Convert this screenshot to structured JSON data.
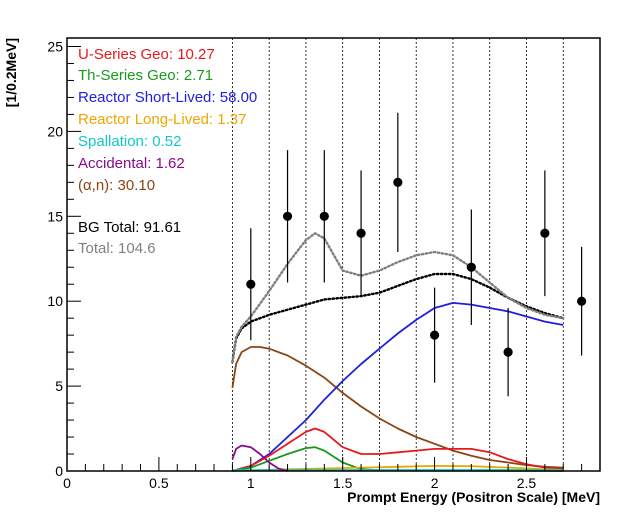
{
  "chart_data": {
    "type": "line",
    "title": "",
    "xlabel": "Prompt Energy (Positron Scale) [MeV]",
    "ylabel": "[1/0.2MeV]",
    "xlim": [
      0,
      2.9
    ],
    "ylim": [
      0,
      25.5
    ],
    "x_ticks": [
      0,
      0.5,
      1,
      1.5,
      2,
      2.5
    ],
    "x_tick_labels": [
      "0",
      "0.5",
      "1",
      "1.5",
      "2",
      "2.5"
    ],
    "y_ticks": [
      0,
      5,
      10,
      15,
      20,
      25
    ],
    "y_tick_labels": [
      "0",
      "5",
      "10",
      "15",
      "20",
      "25"
    ],
    "bin_edges_dotted": [
      0.9,
      1.1,
      1.3,
      1.5,
      1.7,
      1.9,
      2.1,
      2.3,
      2.5,
      2.7
    ],
    "legend_placement": "top-left",
    "legend": [
      {
        "label": "U-Series Geo: 10.27",
        "color": "#e41a1c"
      },
      {
        "label": "Th-Series Geo: 2.71",
        "color": "#1a9a1a"
      },
      {
        "label": "Reactor Short-Lived: 58.00",
        "color": "#1f1fe0"
      },
      {
        "label": "Reactor Long-Lived: 1.37",
        "color": "#f0a500"
      },
      {
        "label": "Spallation: 0.52",
        "color": "#10c8c8"
      },
      {
        "label": "Accidental: 1.62",
        "color": "#8b0a8b"
      },
      {
        "label": "(α,n): 30.10",
        "color": "#8b4513"
      },
      {
        "label": "BG Total: 91.61",
        "color": "#000000"
      },
      {
        "label": "Total: 104.6",
        "color": "#808080"
      }
    ],
    "data_points": {
      "name": "Data",
      "x": [
        1.0,
        1.2,
        1.4,
        1.6,
        1.8,
        2.0,
        2.2,
        2.4,
        2.6,
        2.8
      ],
      "y": [
        11,
        15,
        15,
        14,
        17,
        8,
        12,
        7,
        14,
        10
      ],
      "err_lo": [
        3.3,
        3.9,
        3.9,
        3.7,
        4.1,
        2.8,
        3.4,
        2.6,
        3.7,
        3.2
      ],
      "err_hi": [
        3.3,
        3.9,
        3.9,
        3.7,
        4.1,
        2.8,
        3.4,
        2.6,
        3.7,
        3.2
      ]
    },
    "series": [
      {
        "color": "#8b4513",
        "style": "solid",
        "x": [
          0.9,
          0.92,
          0.95,
          1.0,
          1.05,
          1.1,
          1.2,
          1.3,
          1.4,
          1.5,
          1.6,
          1.7,
          1.8,
          1.9,
          2.0,
          2.1,
          2.2,
          2.3,
          2.4,
          2.5,
          2.6,
          2.7
        ],
        "y": [
          4.9,
          6.3,
          7.0,
          7.3,
          7.3,
          7.2,
          6.8,
          6.2,
          5.5,
          4.6,
          3.8,
          3.1,
          2.5,
          2.0,
          1.6,
          1.2,
          0.9,
          0.65,
          0.5,
          0.35,
          0.25,
          0.2
        ]
      },
      {
        "color": "#1f1fe0",
        "style": "solid",
        "x": [
          0.9,
          1.0,
          1.1,
          1.2,
          1.3,
          1.4,
          1.5,
          1.6,
          1.7,
          1.8,
          1.9,
          2.0,
          2.1,
          2.2,
          2.3,
          2.4,
          2.5,
          2.6,
          2.7
        ],
        "y": [
          0.0,
          0.3,
          1.0,
          2.0,
          3.0,
          4.2,
          5.3,
          6.3,
          7.2,
          8.1,
          8.9,
          9.6,
          9.9,
          9.8,
          9.6,
          9.4,
          9.1,
          8.8,
          8.6
        ]
      },
      {
        "color": "#e41a1c",
        "style": "solid",
        "x": [
          0.9,
          1.0,
          1.1,
          1.2,
          1.3,
          1.35,
          1.4,
          1.5,
          1.6,
          1.7,
          1.8,
          1.9,
          2.0,
          2.1,
          2.2,
          2.3,
          2.4,
          2.5,
          2.6,
          2.7
        ],
        "y": [
          0.0,
          0.3,
          0.9,
          1.6,
          2.3,
          2.5,
          2.3,
          1.4,
          1.0,
          1.0,
          1.1,
          1.2,
          1.3,
          1.3,
          1.3,
          1.1,
          0.7,
          0.4,
          0.2,
          0.1
        ]
      },
      {
        "color": "#1a9a1a",
        "style": "solid",
        "x": [
          0.9,
          1.0,
          1.1,
          1.2,
          1.3,
          1.35,
          1.4,
          1.5,
          1.6,
          1.7,
          1.8,
          1.9,
          2.0,
          2.2,
          2.4,
          2.6,
          2.7
        ],
        "y": [
          0.0,
          0.2,
          0.6,
          1.0,
          1.35,
          1.4,
          1.2,
          0.5,
          0.1,
          0.05,
          0.03,
          0.02,
          0.02,
          0.02,
          0.01,
          0.01,
          0.0
        ]
      },
      {
        "color": "#f0a500",
        "style": "solid",
        "x": [
          0.9,
          1.0,
          1.2,
          1.4,
          1.6,
          1.8,
          2.0,
          2.2,
          2.4,
          2.6,
          2.7
        ],
        "y": [
          0.0,
          0.05,
          0.1,
          0.15,
          0.2,
          0.25,
          0.3,
          0.28,
          0.2,
          0.1,
          0.05
        ]
      },
      {
        "color": "#10c8c8",
        "style": "solid",
        "x": [
          0.9,
          1.2,
          1.5,
          1.8,
          2.1,
          2.4,
          2.7
        ],
        "y": [
          0.05,
          0.06,
          0.06,
          0.06,
          0.06,
          0.06,
          0.05
        ]
      },
      {
        "color": "#8b0a8b",
        "style": "solid",
        "x": [
          0.9,
          0.92,
          0.95,
          1.0,
          1.05,
          1.1,
          1.15,
          1.2
        ],
        "y": [
          0.7,
          1.3,
          1.5,
          1.4,
          1.0,
          0.5,
          0.15,
          0.0
        ]
      },
      {
        "color": "#000000",
        "style": "dotted",
        "x": [
          0.9,
          0.92,
          0.95,
          1.0,
          1.1,
          1.2,
          1.3,
          1.4,
          1.5,
          1.6,
          1.7,
          1.8,
          1.9,
          2.0,
          2.1,
          2.2,
          2.3,
          2.4,
          2.5,
          2.6,
          2.7
        ],
        "y": [
          6.4,
          7.8,
          8.4,
          8.8,
          9.2,
          9.5,
          9.8,
          10.1,
          10.2,
          10.3,
          10.5,
          10.9,
          11.3,
          11.6,
          11.6,
          11.3,
          10.8,
          10.2,
          9.7,
          9.3,
          9.0
        ]
      },
      {
        "color": "#808080",
        "style": "dotted",
        "x": [
          0.9,
          0.92,
          0.95,
          1.0,
          1.1,
          1.2,
          1.3,
          1.35,
          1.4,
          1.5,
          1.6,
          1.7,
          1.8,
          1.9,
          2.0,
          2.1,
          2.2,
          2.3,
          2.4,
          2.5,
          2.6,
          2.7
        ],
        "y": [
          6.4,
          7.9,
          8.5,
          9.1,
          10.6,
          12.2,
          13.6,
          14.0,
          13.7,
          11.8,
          11.5,
          11.8,
          12.3,
          12.7,
          12.9,
          12.7,
          12.0,
          11.1,
          10.2,
          9.6,
          9.2,
          9.0
        ]
      }
    ]
  }
}
